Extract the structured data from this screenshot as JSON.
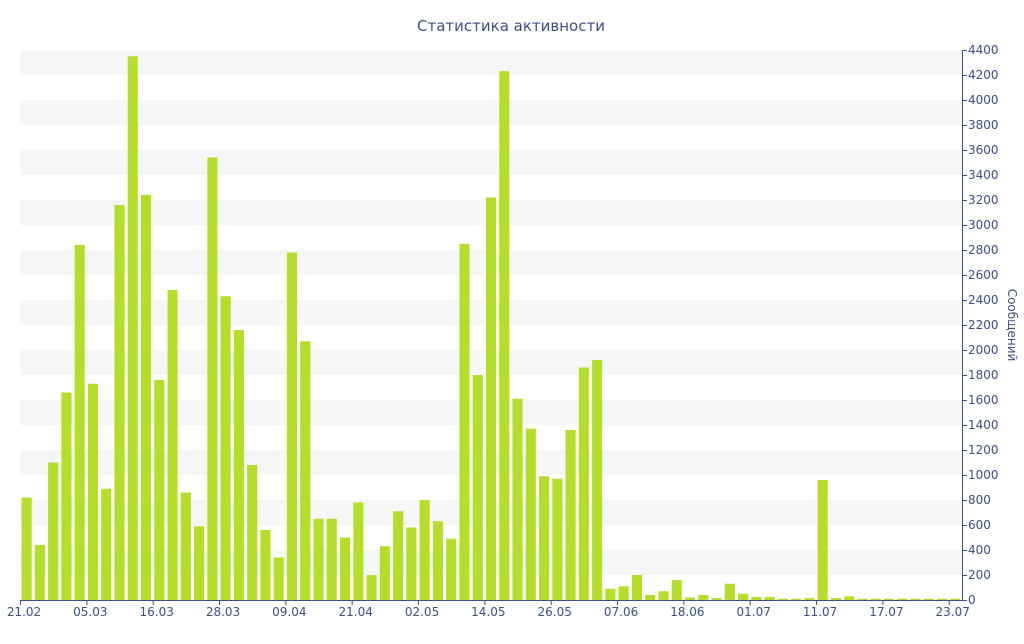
{
  "chart_data": {
    "type": "bar",
    "title": "Статистика активности",
    "ylabel": "Сообщений",
    "xlabel": "",
    "ylim": [
      0,
      4400
    ],
    "y_ticks": [
      0,
      200,
      400,
      600,
      800,
      1000,
      1200,
      1400,
      1600,
      1800,
      2000,
      2200,
      2400,
      2600,
      2800,
      3000,
      3200,
      3400,
      3600,
      3800,
      4000,
      4200,
      4400
    ],
    "x_tick_labels": [
      "21.02",
      "05.03",
      "16.03",
      "28.03",
      "09.04",
      "21.04",
      "02.05",
      "14.05",
      "26.05",
      "07.06",
      "18.06",
      "01.07",
      "11.07",
      "17.07",
      "23.07"
    ],
    "x_tick_bar_index": [
      0,
      5,
      10,
      15,
      20,
      25,
      30,
      35,
      40,
      45,
      50,
      55,
      60,
      65,
      70
    ],
    "values": [
      820,
      440,
      1100,
      1660,
      2840,
      1730,
      890,
      3160,
      4350,
      3240,
      1760,
      2480,
      860,
      590,
      3540,
      2430,
      2160,
      1080,
      560,
      340,
      2780,
      2070,
      650,
      650,
      500,
      780,
      200,
      430,
      710,
      580,
      800,
      630,
      490,
      2850,
      1800,
      3220,
      4230,
      1610,
      1370,
      990,
      970,
      1360,
      1860,
      1920,
      90,
      110,
      200,
      40,
      70,
      160,
      20,
      40,
      15,
      130,
      50,
      25,
      25,
      10,
      10,
      15,
      960,
      15,
      30,
      10,
      10,
      10,
      10,
      10,
      10,
      10,
      10
    ],
    "bar_color": "#b5de2a",
    "band_color": "#f6f6f6",
    "text_color": "#3d4f8a",
    "grid": "horizontal bands",
    "axis_position": "right"
  }
}
